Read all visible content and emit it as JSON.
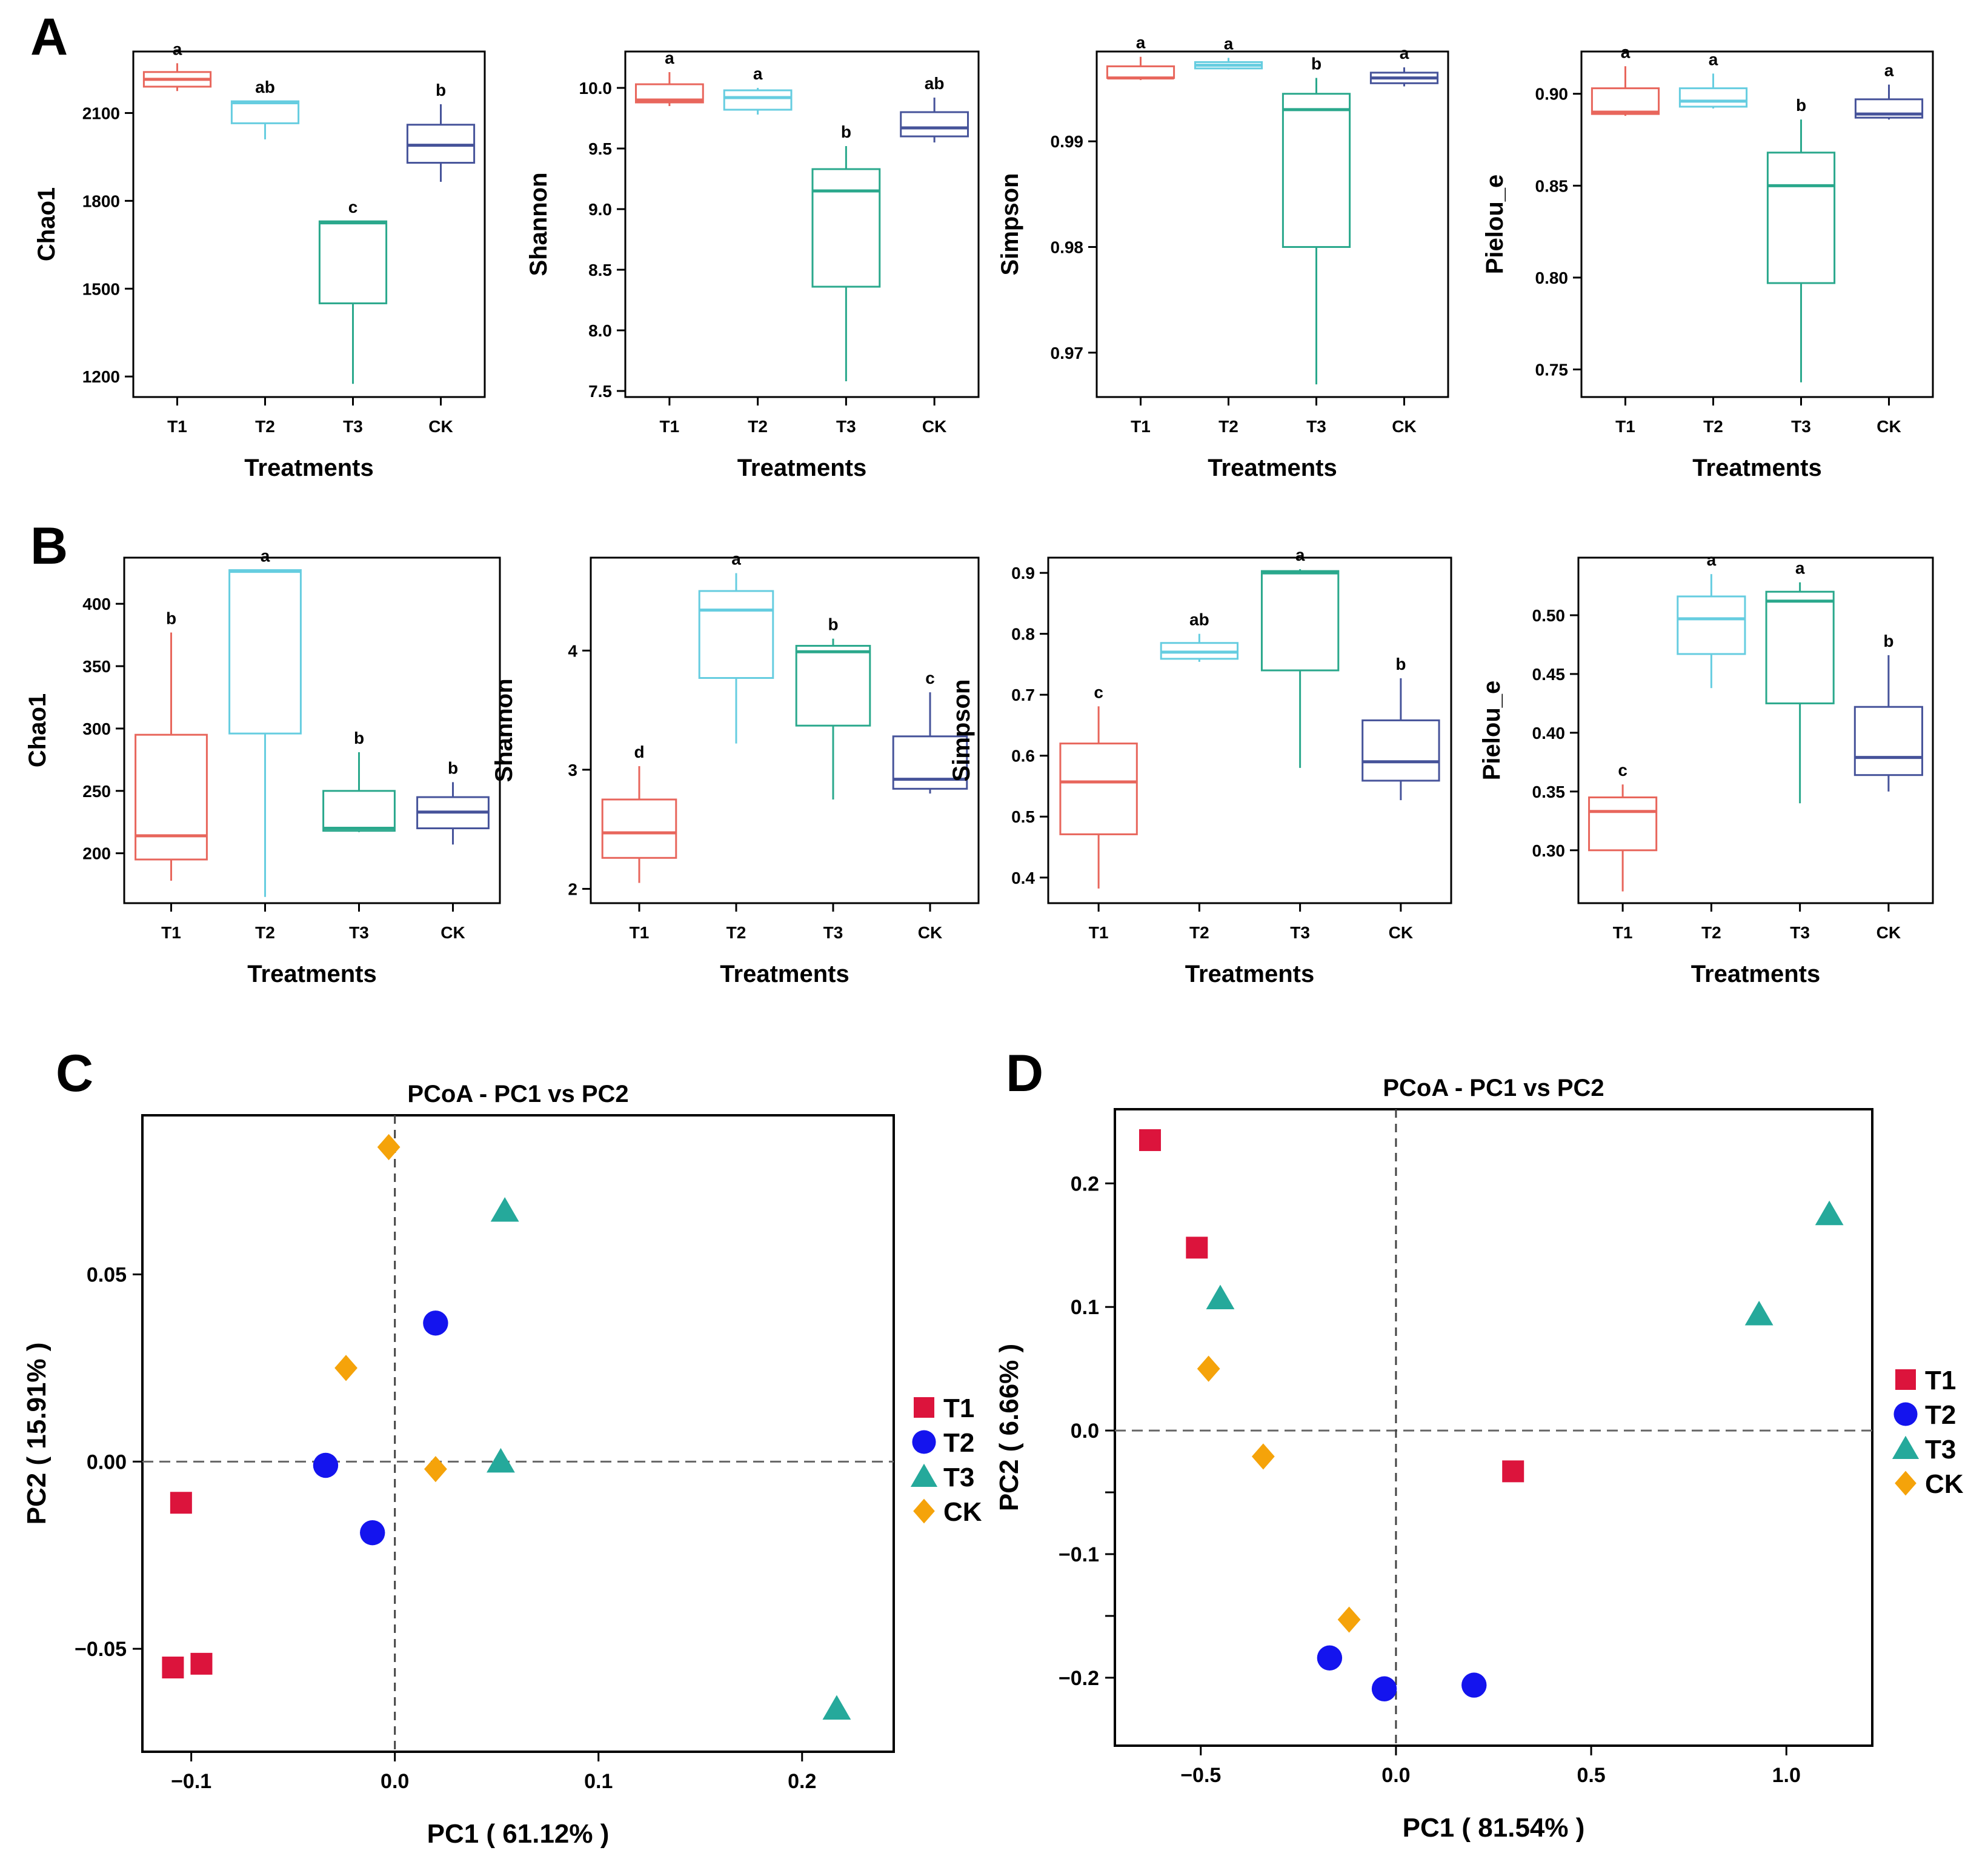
{
  "panel_labels": [
    "A",
    "B",
    "C",
    "D"
  ],
  "colors": {
    "T1": "#e8665c",
    "T2": "#66cde0",
    "T3": "#2aa88c",
    "CK": "#46539a",
    "scatter_T1": "#dc143c",
    "scatter_T2": "#1414ee",
    "scatter_T3": "#25a99b",
    "scatter_CK": "#f5a30a"
  },
  "chart_data": [
    {
      "type": "box",
      "panel": "A",
      "title": "",
      "xlabel": "Treatments",
      "ylabel": "Chao1",
      "ylim": [
        1130,
        2310
      ],
      "yticks": [
        1200,
        1500,
        1800,
        2100
      ],
      "ytick_labels": [
        "1200",
        "1500",
        "1800",
        "2100"
      ],
      "categories": [
        "T1",
        "T2",
        "T3",
        "CK"
      ],
      "boxes": [
        {
          "whisker_low": 2175,
          "q1": 2190,
          "median": 2215,
          "q3": 2240,
          "whisker_high": 2270,
          "letter": "a"
        },
        {
          "whisker_low": 2010,
          "q1": 2065,
          "median": 2135,
          "q3": 2140,
          "whisker_high": 2140,
          "letter": "ab"
        },
        {
          "whisker_low": 1175,
          "q1": 1450,
          "median": 1725,
          "q3": 1730,
          "whisker_high": 1730,
          "letter": "c"
        },
        {
          "whisker_low": 1865,
          "q1": 1930,
          "median": 1990,
          "q3": 2060,
          "whisker_high": 2130,
          "letter": "b"
        }
      ]
    },
    {
      "type": "box",
      "panel": "A",
      "title": "",
      "xlabel": "Treatments",
      "ylabel": "Shannon",
      "ylim": [
        7.45,
        10.3
      ],
      "yticks": [
        7.5,
        8.0,
        8.5,
        9.0,
        9.5,
        10.0
      ],
      "ytick_labels": [
        "7.5",
        "8.0",
        "8.5",
        "9.0",
        "9.5",
        "10.0"
      ],
      "categories": [
        "T1",
        "T2",
        "T3",
        "CK"
      ],
      "boxes": [
        {
          "whisker_low": 9.85,
          "q1": 9.88,
          "median": 9.9,
          "q3": 10.03,
          "whisker_high": 10.13,
          "letter": "a"
        },
        {
          "whisker_low": 9.78,
          "q1": 9.82,
          "median": 9.92,
          "q3": 9.98,
          "whisker_high": 10.0,
          "letter": "a"
        },
        {
          "whisker_low": 7.58,
          "q1": 8.36,
          "median": 9.15,
          "q3": 9.33,
          "whisker_high": 9.52,
          "letter": "b"
        },
        {
          "whisker_low": 9.55,
          "q1": 9.6,
          "median": 9.67,
          "q3": 9.8,
          "whisker_high": 9.92,
          "letter": "ab"
        }
      ]
    },
    {
      "type": "box",
      "panel": "A",
      "title": "",
      "xlabel": "Treatments",
      "ylabel": "Simpson",
      "ylim": [
        0.9658,
        0.9985
      ],
      "yticks": [
        0.97,
        0.98,
        0.99
      ],
      "ytick_labels": [
        "0.97",
        "0.98",
        "0.99"
      ],
      "categories": [
        "T1",
        "T2",
        "T3",
        "CK"
      ],
      "boxes": [
        {
          "whisker_low": 0.9958,
          "q1": 0.996,
          "median": 0.996,
          "q3": 0.9971,
          "whisker_high": 0.998,
          "letter": "a"
        },
        {
          "whisker_low": 0.9968,
          "q1": 0.9969,
          "median": 0.9972,
          "q3": 0.9975,
          "whisker_high": 0.9979,
          "letter": "a"
        },
        {
          "whisker_low": 0.967,
          "q1": 0.98,
          "median": 0.993,
          "q3": 0.9945,
          "whisker_high": 0.996,
          "letter": "b"
        },
        {
          "whisker_low": 0.9952,
          "q1": 0.9955,
          "median": 0.996,
          "q3": 0.9965,
          "whisker_high": 0.997,
          "letter": "a"
        }
      ]
    },
    {
      "type": "box",
      "panel": "A",
      "title": "",
      "xlabel": "Treatments",
      "ylabel": "Pielou_e",
      "ylim": [
        0.735,
        0.923
      ],
      "yticks": [
        0.75,
        0.8,
        0.85,
        0.9
      ],
      "ytick_labels": [
        "0.75",
        "0.80",
        "0.85",
        "0.90"
      ],
      "categories": [
        "T1",
        "T2",
        "T3",
        "CK"
      ],
      "boxes": [
        {
          "whisker_low": 0.888,
          "q1": 0.889,
          "median": 0.89,
          "q3": 0.903,
          "whisker_high": 0.915,
          "letter": "a"
        },
        {
          "whisker_low": 0.892,
          "q1": 0.893,
          "median": 0.896,
          "q3": 0.903,
          "whisker_high": 0.911,
          "letter": "a"
        },
        {
          "whisker_low": 0.743,
          "q1": 0.797,
          "median": 0.85,
          "q3": 0.868,
          "whisker_high": 0.886,
          "letter": "b"
        },
        {
          "whisker_low": 0.886,
          "q1": 0.887,
          "median": 0.889,
          "q3": 0.897,
          "whisker_high": 0.905,
          "letter": "a"
        }
      ]
    },
    {
      "type": "box",
      "panel": "B",
      "title": "",
      "xlabel": "Treatments",
      "ylabel": "Chao1",
      "ylim": [
        160,
        437
      ],
      "yticks": [
        200,
        250,
        300,
        350,
        400
      ],
      "ytick_labels": [
        "200",
        "250",
        "300",
        "350",
        "400"
      ],
      "categories": [
        "T1",
        "T2",
        "T3",
        "CK"
      ],
      "boxes": [
        {
          "whisker_low": 178,
          "q1": 195,
          "median": 214,
          "q3": 295,
          "whisker_high": 377,
          "letter": "b"
        },
        {
          "whisker_low": 165,
          "q1": 296,
          "median": 426,
          "q3": 427,
          "whisker_high": 427,
          "letter": "a"
        },
        {
          "whisker_low": 217,
          "q1": 218,
          "median": 220,
          "q3": 250,
          "whisker_high": 281,
          "letter": "b"
        },
        {
          "whisker_low": 207,
          "q1": 220,
          "median": 233,
          "q3": 245,
          "whisker_high": 257,
          "letter": "b"
        }
      ]
    },
    {
      "type": "box",
      "panel": "B",
      "title": "",
      "xlabel": "Treatments",
      "ylabel": "Shannon",
      "ylim": [
        1.88,
        4.78
      ],
      "yticks": [
        2,
        3,
        4
      ],
      "ytick_labels": [
        "2",
        "3",
        "4"
      ],
      "categories": [
        "T1",
        "T2",
        "T3",
        "CK"
      ],
      "boxes": [
        {
          "whisker_low": 2.05,
          "q1": 2.26,
          "median": 2.47,
          "q3": 2.75,
          "whisker_high": 3.03,
          "letter": "d"
        },
        {
          "whisker_low": 3.22,
          "q1": 3.77,
          "median": 4.34,
          "q3": 4.5,
          "whisker_high": 4.65,
          "letter": "a"
        },
        {
          "whisker_low": 2.75,
          "q1": 3.37,
          "median": 3.99,
          "q3": 4.04,
          "whisker_high": 4.1,
          "letter": "b"
        },
        {
          "whisker_low": 2.8,
          "q1": 2.84,
          "median": 2.92,
          "q3": 3.28,
          "whisker_high": 3.65,
          "letter": "c"
        }
      ]
    },
    {
      "type": "box",
      "panel": "B",
      "title": "",
      "xlabel": "Treatments",
      "ylabel": "Simpson",
      "ylim": [
        0.358,
        0.925
      ],
      "yticks": [
        0.4,
        0.5,
        0.6,
        0.7,
        0.8,
        0.9
      ],
      "ytick_labels": [
        "0.4",
        "0.5",
        "0.6",
        "0.7",
        "0.8",
        "0.9"
      ],
      "categories": [
        "T1",
        "T2",
        "T3",
        "CK"
      ],
      "boxes": [
        {
          "whisker_low": 0.382,
          "q1": 0.471,
          "median": 0.557,
          "q3": 0.62,
          "whisker_high": 0.681,
          "letter": "c"
        },
        {
          "whisker_low": 0.754,
          "q1": 0.759,
          "median": 0.77,
          "q3": 0.785,
          "whisker_high": 0.8,
          "letter": "ab"
        },
        {
          "whisker_low": 0.58,
          "q1": 0.74,
          "median": 0.9,
          "q3": 0.903,
          "whisker_high": 0.906,
          "letter": "a"
        },
        {
          "whisker_low": 0.527,
          "q1": 0.559,
          "median": 0.59,
          "q3": 0.658,
          "whisker_high": 0.727,
          "letter": "b"
        }
      ]
    },
    {
      "type": "box",
      "panel": "B",
      "title": "",
      "xlabel": "Treatments",
      "ylabel": "Pielou_e",
      "ylim": [
        0.255,
        0.549
      ],
      "yticks": [
        0.3,
        0.35,
        0.4,
        0.45,
        0.5
      ],
      "ytick_labels": [
        "0.30",
        "0.35",
        "0.40",
        "0.45",
        "0.50"
      ],
      "categories": [
        "T1",
        "T2",
        "T3",
        "CK"
      ],
      "boxes": [
        {
          "whisker_low": 0.265,
          "q1": 0.3,
          "median": 0.333,
          "q3": 0.345,
          "whisker_high": 0.356,
          "letter": "c"
        },
        {
          "whisker_low": 0.438,
          "q1": 0.467,
          "median": 0.497,
          "q3": 0.516,
          "whisker_high": 0.535,
          "letter": "a"
        },
        {
          "whisker_low": 0.34,
          "q1": 0.425,
          "median": 0.512,
          "q3": 0.52,
          "whisker_high": 0.528,
          "letter": "a"
        },
        {
          "whisker_low": 0.35,
          "q1": 0.364,
          "median": 0.379,
          "q3": 0.422,
          "whisker_high": 0.466,
          "letter": "b"
        }
      ]
    },
    {
      "type": "scatter",
      "panel": "C",
      "title": "PCoA - PC1 vs PC2",
      "xlabel": "PC1 ( 61.12% )",
      "ylabel": "PC2 ( 15.91% )",
      "xlim": [
        -0.124,
        0.245
      ],
      "ylim": [
        -0.0775,
        0.0925
      ],
      "xticks": [
        -0.1,
        0.0,
        0.1,
        0.2
      ],
      "xtick_labels": [
        "−0.1",
        "0.0",
        "0.1",
        "0.2"
      ],
      "yticks": [
        -0.05,
        0.0,
        0.05
      ],
      "ytick_labels": [
        "−0.05",
        "0.00",
        "0.05"
      ],
      "legend": [
        "T1",
        "T2",
        "T3",
        "CK"
      ],
      "series": [
        {
          "name": "T1",
          "marker": "square",
          "points": [
            [
              -0.105,
              -0.011
            ],
            [
              -0.109,
              -0.055
            ],
            [
              -0.095,
              -0.054
            ]
          ]
        },
        {
          "name": "T2",
          "marker": "circle",
          "points": [
            [
              0.02,
              0.037
            ],
            [
              -0.034,
              -0.001
            ],
            [
              -0.011,
              -0.019
            ]
          ]
        },
        {
          "name": "T3",
          "marker": "triangle",
          "points": [
            [
              0.054,
              0.067
            ],
            [
              0.052,
              0.0
            ],
            [
              0.217,
              -0.066
            ]
          ]
        },
        {
          "name": "CK",
          "marker": "diamond",
          "points": [
            [
              -0.003,
              0.084
            ],
            [
              -0.024,
              0.025
            ],
            [
              0.02,
              -0.002
            ]
          ]
        }
      ]
    },
    {
      "type": "scatter",
      "panel": "D",
      "title": "PCoA - PC1 vs PC2",
      "xlabel": "PC1 ( 81.54% )",
      "ylabel": "PC2 ( 6.66% )",
      "xlim": [
        -0.72,
        1.22
      ],
      "ylim": [
        -0.255,
        0.26
      ],
      "xticks": [
        -0.5,
        0.0,
        0.5,
        1.0
      ],
      "xtick_labels": [
        "−0.5",
        "0.0",
        "0.5",
        "1.0"
      ],
      "yticks": [
        -0.2,
        -0.1,
        0.0,
        0.1,
        0.2
      ],
      "ytick_labels": [
        "−0.2",
        "−0.1",
        "0.0",
        "0.1",
        "0.2"
      ],
      "extra_yticks": [
        -0.05,
        -0.15
      ],
      "legend": [
        "T1",
        "T2",
        "T3",
        "CK"
      ],
      "series": [
        {
          "name": "T1",
          "marker": "square",
          "points": [
            [
              -0.63,
              0.235
            ],
            [
              -0.51,
              0.148
            ],
            [
              0.3,
              -0.033
            ]
          ]
        },
        {
          "name": "T2",
          "marker": "circle",
          "points": [
            [
              -0.17,
              -0.184
            ],
            [
              -0.03,
              -0.209
            ],
            [
              0.2,
              -0.206
            ]
          ]
        },
        {
          "name": "T3",
          "marker": "triangle",
          "points": [
            [
              -0.45,
              0.107
            ],
            [
              0.93,
              0.094
            ],
            [
              1.11,
              0.175
            ]
          ]
        },
        {
          "name": "CK",
          "marker": "diamond",
          "points": [
            [
              -0.48,
              0.05
            ],
            [
              -0.34,
              -0.021
            ],
            [
              -0.12,
              -0.153
            ]
          ]
        }
      ]
    }
  ]
}
